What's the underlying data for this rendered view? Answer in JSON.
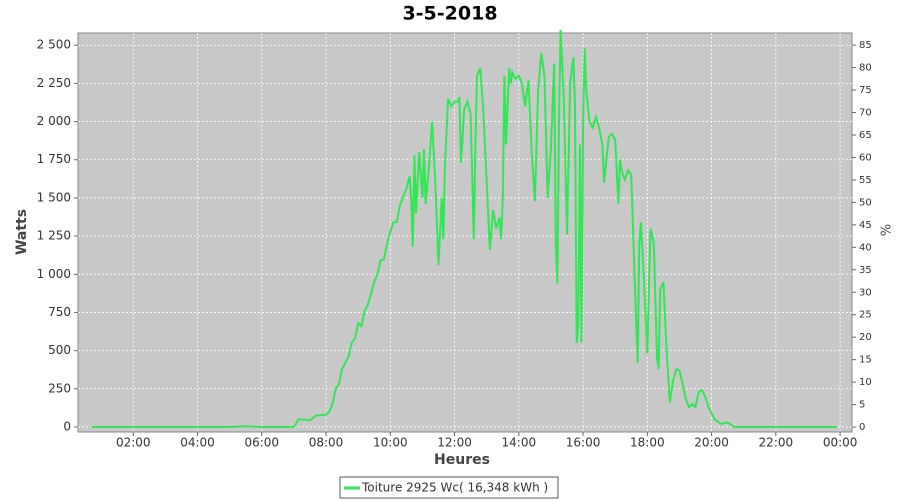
{
  "chart_data": {
    "type": "line",
    "title": "3-5-2018",
    "x_label": "Heures",
    "y_label": "Watts",
    "y2_label": "%",
    "x": [
      0.7,
      5.0,
      5.5,
      6.0,
      7.0,
      7.15,
      7.5,
      7.7,
      8.0,
      8.1,
      8.2,
      8.3,
      8.4,
      8.5,
      8.6,
      8.7,
      8.8,
      8.9,
      9.0,
      9.1,
      9.2,
      9.3,
      9.4,
      9.5,
      9.6,
      9.7,
      9.8,
      9.9,
      10.0,
      10.1,
      10.2,
      10.3,
      10.4,
      10.5,
      10.6,
      10.65,
      10.7,
      10.75,
      10.8,
      10.9,
      11.0,
      11.05,
      11.1,
      11.2,
      11.3,
      11.4,
      11.5,
      11.6,
      11.65,
      11.7,
      11.8,
      11.9,
      12.0,
      12.1,
      12.15,
      12.2,
      12.3,
      12.4,
      12.5,
      12.6,
      12.65,
      12.7,
      12.8,
      12.9,
      13.0,
      13.1,
      13.2,
      13.3,
      13.4,
      13.45,
      13.5,
      13.55,
      13.6,
      13.7,
      13.75,
      13.8,
      13.9,
      14.0,
      14.1,
      14.2,
      14.3,
      14.4,
      14.5,
      14.6,
      14.7,
      14.8,
      14.9,
      15.0,
      15.1,
      15.15,
      15.2,
      15.25,
      15.3,
      15.4,
      15.5,
      15.6,
      15.7,
      15.75,
      15.8,
      15.85,
      15.9,
      15.95,
      16.0,
      16.05,
      16.1,
      16.2,
      16.3,
      16.4,
      16.5,
      16.6,
      16.65,
      16.8,
      16.9,
      17.0,
      17.1,
      17.15,
      17.2,
      17.3,
      17.4,
      17.5,
      17.6,
      17.7,
      17.75,
      17.8,
      17.9,
      18.0,
      18.1,
      18.2,
      18.3,
      18.35,
      18.4,
      18.5,
      18.6,
      18.7,
      18.8,
      18.9,
      19.0,
      19.1,
      19.2,
      19.3,
      19.4,
      19.5,
      19.6,
      19.7,
      19.8,
      19.9,
      20.0,
      20.1,
      20.3,
      20.5,
      20.7,
      23.9
    ],
    "series": [
      {
        "name": "Toiture 2925 Wc( 16,348 kWh )",
        "color": "#33e655",
        "values": [
          0,
          0,
          5,
          0,
          0,
          50,
          45,
          75,
          80,
          100,
          150,
          250,
          280,
          380,
          420,
          460,
          550,
          580,
          680,
          660,
          760,
          800,
          870,
          950,
          1000,
          1090,
          1100,
          1200,
          1280,
          1340,
          1340,
          1450,
          1510,
          1560,
          1640,
          1500,
          1180,
          1780,
          1400,
          1800,
          1500,
          1820,
          1460,
          1700,
          2000,
          1600,
          1060,
          1500,
          1230,
          1700,
          2150,
          2100,
          2130,
          2130,
          2160,
          1730,
          2080,
          2130,
          2050,
          1230,
          1850,
          2300,
          2350,
          2050,
          1600,
          1160,
          1420,
          1300,
          1370,
          1230,
          1500,
          2300,
          1850,
          2350,
          2250,
          2320,
          2280,
          2300,
          2250,
          2100,
          2270,
          1800,
          1480,
          2200,
          2450,
          2300,
          1500,
          1820,
          2380,
          1200,
          940,
          2000,
          2600,
          2150,
          1260,
          2250,
          2420,
          2100,
          550,
          680,
          1850,
          550,
          2000,
          2480,
          2200,
          2000,
          1960,
          2030,
          1960,
          1850,
          1600,
          1900,
          1920,
          1880,
          1460,
          1750,
          1680,
          1620,
          1680,
          1650,
          1000,
          420,
          1200,
          1340,
          950,
          480,
          1300,
          1200,
          450,
          380,
          900,
          950,
          500,
          160,
          300,
          380,
          370,
          280,
          180,
          130,
          150,
          130,
          230,
          240,
          200,
          130,
          90,
          50,
          20,
          30,
          0,
          0
        ]
      }
    ],
    "xlim": [
      0.28,
      24.37
    ],
    "xticks": [
      {
        "value": 2,
        "label": "02:00"
      },
      {
        "value": 4,
        "label": "04:00"
      },
      {
        "value": 6,
        "label": "06:00"
      },
      {
        "value": 8,
        "label": "08:00"
      },
      {
        "value": 10,
        "label": "10:00"
      },
      {
        "value": 12,
        "label": "12:00"
      },
      {
        "value": 14,
        "label": "14:00"
      },
      {
        "value": 16,
        "label": "16:00"
      },
      {
        "value": 18,
        "label": "18:00"
      },
      {
        "value": 20,
        "label": "20:00"
      },
      {
        "value": 22,
        "label": "22:00"
      },
      {
        "value": 24,
        "label": "00:00"
      }
    ],
    "ylim": [
      -33,
      2580
    ],
    "yticks": [
      0,
      250,
      500,
      750,
      {
        "value": 1000,
        "label": "1 000"
      },
      {
        "value": 1250,
        "label": "1 250"
      },
      {
        "value": 1500,
        "label": "1 500"
      },
      {
        "value": 1750,
        "label": "1 750"
      },
      {
        "value": 2000,
        "label": "2 000"
      },
      {
        "value": 2250,
        "label": "2 250"
      },
      {
        "value": 2500,
        "label": "2 500"
      }
    ],
    "y2lim": [
      -1.1,
      87.7
    ],
    "y2ticks": [
      0,
      5,
      10,
      15,
      20,
      25,
      30,
      35,
      40,
      45,
      50,
      55,
      60,
      65,
      70,
      75,
      80,
      85
    ],
    "grid": true,
    "legend": "bottom"
  }
}
